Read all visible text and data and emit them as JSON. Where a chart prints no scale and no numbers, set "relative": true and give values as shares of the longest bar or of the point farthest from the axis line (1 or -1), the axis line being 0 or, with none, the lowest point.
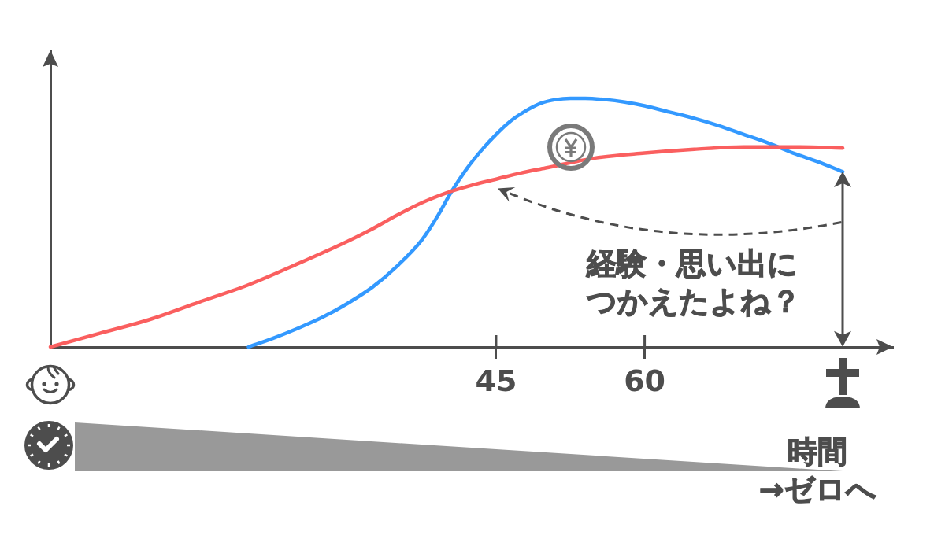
{
  "chart_data": {
    "type": "line",
    "relative": true,
    "xlim": [
      0,
      85
    ],
    "xticks": [
      45,
      60
    ],
    "series": [
      {
        "color": "#fa5f5f",
        "x": [
          0,
          5,
          10,
          15,
          20,
          25,
          30,
          32.5,
          35,
          37.5,
          40,
          42.5,
          45,
          47.5,
          50,
          55,
          60,
          65,
          70,
          75,
          80
        ],
        "values": [
          0,
          0.055,
          0.11,
          0.18,
          0.25,
          0.335,
          0.425,
          0.475,
          0.53,
          0.58,
          0.62,
          0.65,
          0.675,
          0.7,
          0.72,
          0.76,
          0.78,
          0.795,
          0.805,
          0.805,
          0.8
        ]
      },
      {
        "color": "#3399ff",
        "x": [
          20,
          22.5,
          25,
          27.5,
          30,
          32.5,
          35,
          37.5,
          39,
          40.5,
          42,
          43.5,
          45,
          46.5,
          48,
          49.5,
          51,
          52.5,
          54,
          56,
          58,
          60,
          62.5,
          65,
          67.5,
          70,
          72.5,
          75,
          77.5,
          80
        ],
        "values": [
          0,
          0.035,
          0.075,
          0.12,
          0.175,
          0.24,
          0.325,
          0.43,
          0.52,
          0.625,
          0.715,
          0.79,
          0.855,
          0.91,
          0.95,
          0.98,
          0.995,
          1,
          1,
          0.995,
          0.985,
          0.97,
          0.945,
          0.92,
          0.89,
          0.855,
          0.82,
          0.78,
          0.745,
          0.705
        ]
      }
    ],
    "annotations": [
      "経験・思い出につかえたよね？",
      "時間\n→ゼロへ"
    ]
  }
}
